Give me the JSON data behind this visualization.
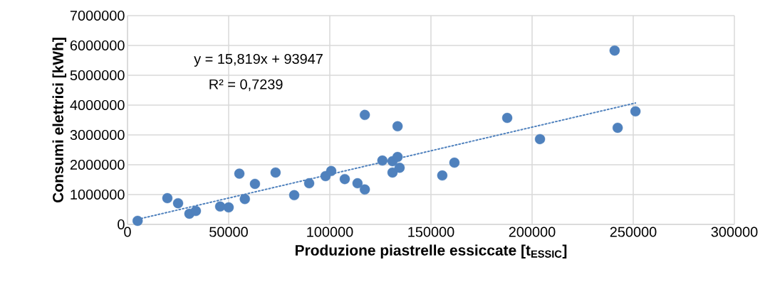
{
  "chart_data": {
    "type": "scatter",
    "xlabel": "Produzione piastrelle essiccate [t$_{ESSIC}$]",
    "ylabel": "Consumi elettrici [kWh]",
    "annotations": [
      "y = 15,819x + 93947",
      "R² = 0,7239"
    ],
    "series": [
      {
        "marker": "circle",
        "color": "#4f81bd",
        "x": [
          5000,
          19700,
          25000,
          30600,
          33800,
          45800,
          50000,
          55300,
          58000,
          63000,
          73200,
          82400,
          89800,
          97900,
          100700,
          107400,
          113700,
          117300,
          117300,
          126000,
          131000,
          131000,
          133500,
          134500,
          133500,
          155600,
          161600,
          187700,
          203900,
          240800,
          242300,
          251100
        ],
        "values": [
          120000,
          880000,
          710000,
          360000,
          450000,
          600000,
          570000,
          1700000,
          850000,
          1360000,
          1740000,
          980000,
          1380000,
          1620000,
          1790000,
          1520000,
          1380000,
          1170000,
          3670000,
          2140000,
          2120000,
          1740000,
          2260000,
          1900000,
          3290000,
          1640000,
          2070000,
          3570000,
          2860000,
          5830000,
          3240000,
          3790000
        ]
      },
      {
        "type": "line",
        "marker": "none",
        "color": "#4f81bd",
        "line_style": "dotted",
        "x": [
          5000,
          251100
        ],
        "values": [
          170000,
          4070000
        ]
      }
    ],
    "xlim": [
      0,
      300000
    ],
    "xticks": [
      0,
      50000,
      100000,
      150000,
      200000,
      250000,
      300000
    ],
    "ylim": [
      0,
      7000000
    ],
    "yticks": [
      0,
      1000000,
      2000000,
      3000000,
      4000000,
      5000000,
      6000000,
      7000000
    ],
    "grid": true
  }
}
